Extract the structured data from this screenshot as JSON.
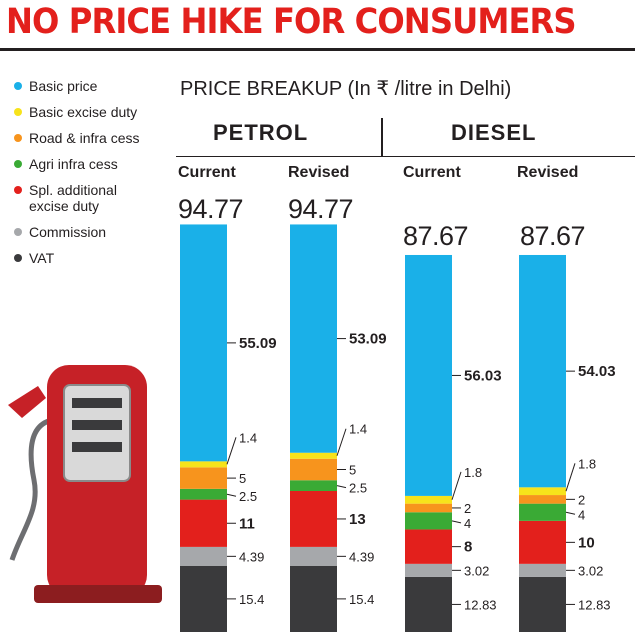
{
  "headline": "NO PRICE HIKE FOR CONSUMERS",
  "subtitle": "PRICE BREAKUP (In ₹ /litre in Delhi)",
  "legend": [
    {
      "label": "Basic price",
      "color": "#1ab0e8"
    },
    {
      "label": "Basic excise duty",
      "color": "#f7e31b"
    },
    {
      "label": "Road & infra cess",
      "color": "#f7941d"
    },
    {
      "label": "Agri infra cess",
      "color": "#3aaa35"
    },
    {
      "label": "Spl. additional\nexcise duty",
      "color": "#e3201c"
    },
    {
      "label": "Commission",
      "color": "#a6a8ab"
    },
    {
      "label": "VAT",
      "color": "#3a3a3c"
    }
  ],
  "fuels": {
    "petrol": "PETROL",
    "diesel": "DIESEL"
  },
  "chart_data": {
    "type": "bar",
    "stacked": true,
    "title": "NO PRICE HIKE FOR CONSUMERS",
    "subtitle": "PRICE BREAKUP (In ₹ /litre in Delhi)",
    "groups": [
      {
        "fuel": "PETROL",
        "columns": [
          {
            "name": "Current",
            "total": "94.77",
            "components": [
              15.4,
              4.39,
              11,
              2.5,
              5,
              1.4,
              55.09
            ],
            "labels": [
              "15.4",
              "4.39",
              "11",
              "2.5",
              "5",
              "1.4",
              "55.09"
            ]
          },
          {
            "name": "Revised",
            "total": "94.77",
            "components": [
              15.4,
              4.39,
              13,
              2.5,
              5,
              1.4,
              53.09
            ],
            "labels": [
              "15.4",
              "4.39",
              "13",
              "2.5",
              "5",
              "1.4",
              "53.09"
            ]
          }
        ]
      },
      {
        "fuel": "DIESEL",
        "columns": [
          {
            "name": "Current",
            "total": "87.67",
            "components": [
              12.83,
              3.02,
              8,
              4,
              2,
              1.8,
              56.03
            ],
            "labels": [
              "12.83",
              "3.02",
              "8",
              "4",
              "2",
              "1.8",
              "56.03"
            ]
          },
          {
            "name": "Revised",
            "total": "87.67",
            "components": [
              12.83,
              3.02,
              10,
              4,
              2,
              1.8,
              54.03
            ],
            "labels": [
              "12.83",
              "3.02",
              "10",
              "4",
              "2",
              "1.8",
              "54.03"
            ]
          }
        ]
      }
    ],
    "component_order": [
      "VAT",
      "Commission",
      "Spl. additional excise duty",
      "Agri infra cess",
      "Road & infra cess",
      "Basic excise duty",
      "Basic price"
    ],
    "component_colors": [
      "#3a3a3c",
      "#a6a8ab",
      "#e3201c",
      "#3aaa35",
      "#f7941d",
      "#f7e31b",
      "#1ab0e8"
    ],
    "bold_components": [
      "Spl. additional excise duty",
      "Basic price"
    ]
  }
}
